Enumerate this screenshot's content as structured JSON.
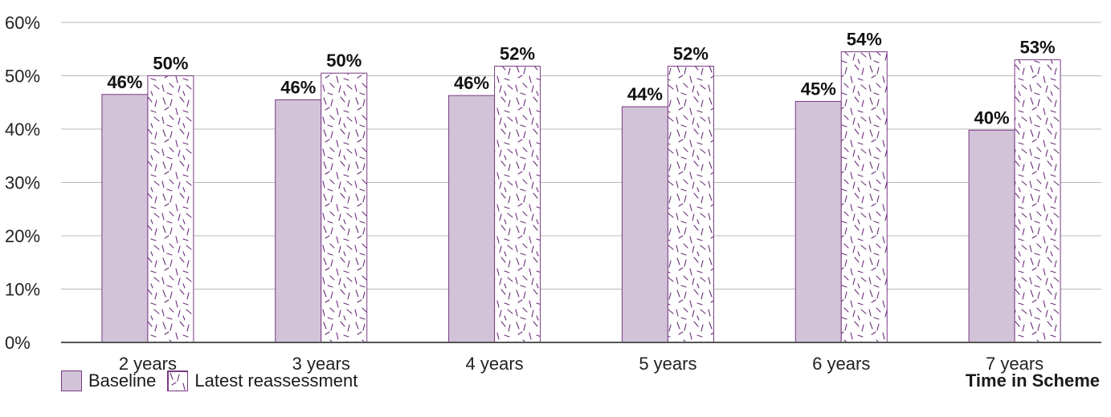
{
  "chart_data": {
    "type": "bar",
    "categories": [
      "2 years",
      "3 years",
      "4 years",
      "5 years",
      "6 years",
      "7 years"
    ],
    "series": [
      {
        "name": "Baseline",
        "values": [
          46.5,
          45.5,
          46.3,
          44.2,
          45.2,
          39.8
        ],
        "labels": [
          "46%",
          "46%",
          "46%",
          "44%",
          "45%",
          "40%"
        ],
        "color": "#d2c3d8",
        "pattern": "solid"
      },
      {
        "name": "Latest reassessment",
        "values": [
          50.0,
          50.5,
          51.8,
          51.8,
          54.5,
          53.0
        ],
        "labels": [
          "50%",
          "50%",
          "52%",
          "52%",
          "54%",
          "53%"
        ],
        "color": "#7a3a84",
        "pattern": "dashes"
      }
    ],
    "ylim": [
      0,
      60
    ],
    "yticks": [
      "0%",
      "10%",
      "20%",
      "30%",
      "40%",
      "50%",
      "60%"
    ],
    "xlabel": "Time in Scheme",
    "grid": true,
    "legend_position": "bottom-left"
  },
  "legend": {
    "baseline": "Baseline",
    "latest": "Latest reassessment"
  },
  "axis": {
    "x_title": "Time in Scheme"
  }
}
